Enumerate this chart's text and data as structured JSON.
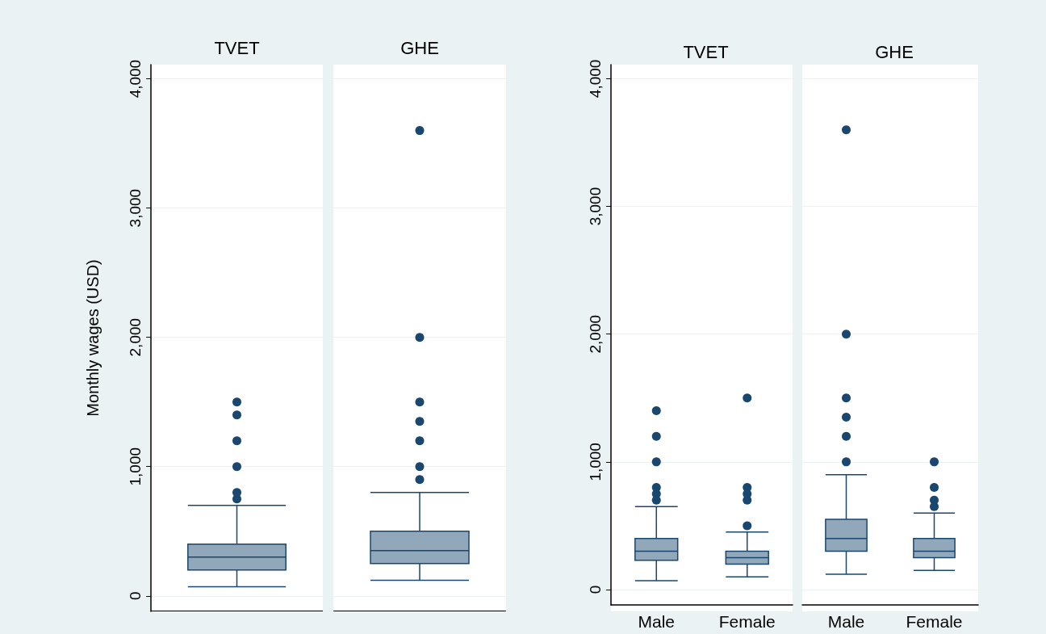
{
  "chart_data": [
    {
      "type": "box",
      "ylabel": "Monthly wages (USD)",
      "categories": [
        "TVET",
        "GHE"
      ],
      "ylim": [
        -120,
        4110
      ],
      "yticks": [
        {
          "value": 0,
          "label": "0"
        },
        {
          "value": 1000,
          "label": "1,000"
        },
        {
          "value": 2000,
          "label": "2,000"
        },
        {
          "value": 3000,
          "label": "3,000"
        },
        {
          "value": 4000,
          "label": "4,000"
        }
      ],
      "grid": "y",
      "series": [
        {
          "color": "#1a476f",
          "boxes": [
            {
              "low": 70,
              "q1": 200,
              "median": 300,
              "q3": 400,
              "high": 700,
              "outliers": [
                750,
                800,
                1000,
                1200,
                1400,
                1500
              ]
            },
            {
              "low": 120,
              "q1": 250,
              "median": 350,
              "q3": 500,
              "high": 800,
              "outliers": [
                900,
                1000,
                1200,
                1350,
                1500,
                2000,
                3600
              ]
            }
          ]
        }
      ]
    },
    {
      "type": "box",
      "title": "TVET",
      "categories": [
        "Male",
        "Female"
      ],
      "ylim": [
        -120,
        4110
      ],
      "yticks": [
        {
          "value": 0,
          "label": "0"
        },
        {
          "value": 1000,
          "label": "1,000"
        },
        {
          "value": 2000,
          "label": "2,000"
        },
        {
          "value": 3000,
          "label": "3,000"
        },
        {
          "value": 4000,
          "label": "4,000"
        }
      ],
      "grid": "y",
      "series": [
        {
          "color": "#1a476f",
          "boxes": [
            {
              "low": 70,
              "q1": 230,
              "median": 300,
              "q3": 400,
              "high": 650,
              "outliers": [
                700,
                750,
                800,
                1000,
                1200,
                1400
              ]
            },
            {
              "low": 100,
              "q1": 200,
              "median": 250,
              "q3": 300,
              "high": 450,
              "outliers": [
                500,
                700,
                750,
                800,
                1500
              ]
            }
          ]
        }
      ]
    },
    {
      "type": "box",
      "title": "GHE",
      "categories": [
        "Male",
        "Female"
      ],
      "ylim": [
        -120,
        4110
      ],
      "yticks": [
        {
          "value": 0,
          "label": null
        },
        {
          "value": 1000,
          "label": null
        },
        {
          "value": 2000,
          "label": null
        },
        {
          "value": 3000,
          "label": null
        },
        {
          "value": 4000,
          "label": null
        }
      ],
      "grid": "y",
      "tick_labels": "x",
      "series": [
        {
          "color": "#1a476f",
          "boxes": [
            {
              "low": 120,
              "q1": 300,
              "median": 400,
              "q3": 550,
              "high": 900,
              "outliers": [
                1000,
                1200,
                1350,
                1500,
                2000,
                3600
              ]
            },
            {
              "low": 150,
              "q1": 250,
              "median": 300,
              "q3": 400,
              "high": 600,
              "outliers": [
                650,
                700,
                800,
                1000
              ]
            }
          ]
        }
      ]
    }
  ]
}
